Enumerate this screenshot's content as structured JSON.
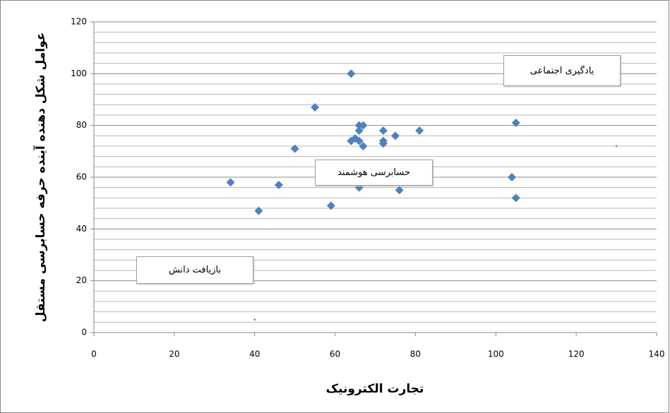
{
  "chart_data": {
    "type": "scatter",
    "x_label": "تجارت الکترونیک",
    "y_label": "عوامل شکل دهنده آینده حرفه حسابرسی مستقل",
    "annotations": [
      "یادگیری اجتماعی",
      "حسابرسی هوشمند",
      "بازیافت دانش"
    ],
    "xlim": [
      0,
      140
    ],
    "xticks": [
      0,
      20,
      40,
      60,
      80,
      100,
      120,
      140
    ],
    "ylim": [
      0,
      120
    ],
    "yticks": [
      0,
      20,
      40,
      60,
      80,
      100,
      120
    ],
    "y_minor_gridlines": [
      4,
      8,
      12,
      16,
      24,
      28,
      32,
      36,
      44,
      48,
      52,
      56,
      64,
      68,
      72,
      76,
      84,
      88,
      92,
      96,
      104,
      108,
      112,
      116
    ],
    "grid": true,
    "series": [
      {
        "color": "#4f81bd",
        "marker": "diamond",
        "x": [
          34,
          41,
          46,
          50,
          55,
          59,
          64,
          64,
          65,
          66,
          66,
          67,
          66,
          67,
          66,
          72,
          72,
          72,
          75,
          81,
          76,
          104,
          105,
          105
        ],
        "y": [
          58,
          47,
          57,
          71,
          87,
          49,
          100,
          74,
          75,
          78,
          80,
          80,
          74,
          72,
          56,
          78,
          74,
          73,
          76,
          78,
          55,
          60,
          81,
          52
        ]
      },
      {
        "color": "#4f81bd",
        "marker": "dot",
        "x": [
          40,
          130
        ],
        "y": [
          5,
          72
        ]
      }
    ]
  }
}
